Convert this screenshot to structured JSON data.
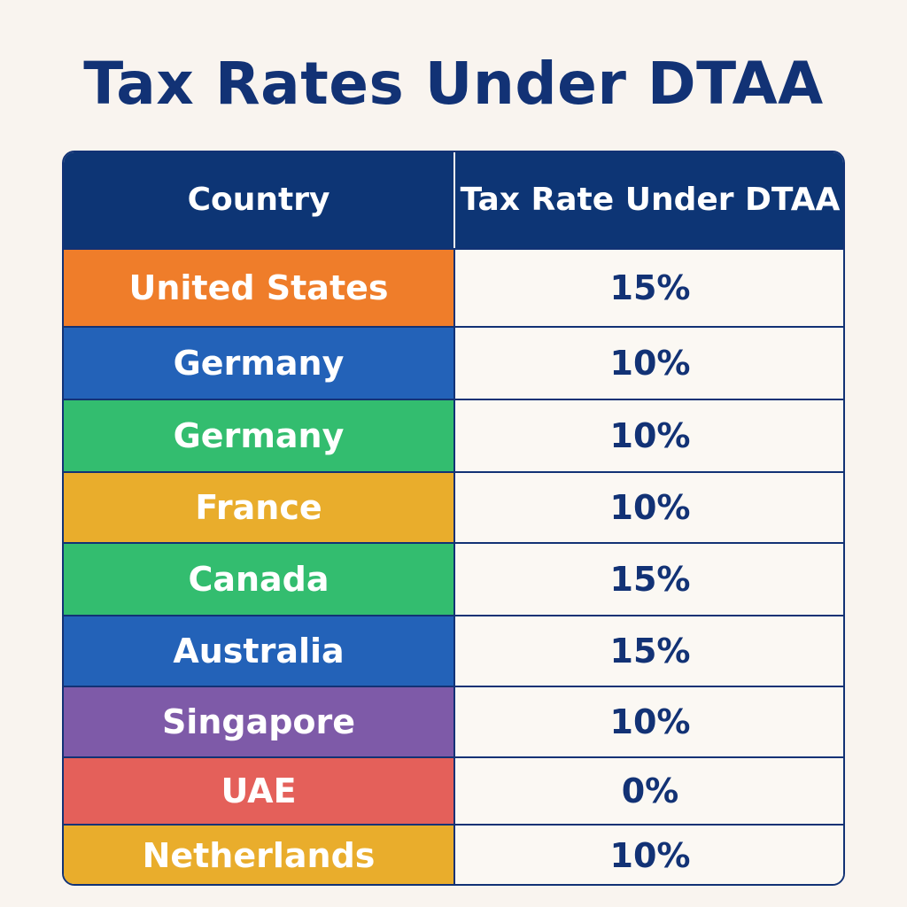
{
  "title": "Tax Rates Under DTAA",
  "table": {
    "headers": {
      "country": "Country",
      "rate": "Tax Rate Under DTAA"
    },
    "rows": [
      {
        "country": "United States",
        "rate": "15%",
        "color": "#ef7d2a"
      },
      {
        "country": "Germany",
        "rate": "10%",
        "color": "#2362b8"
      },
      {
        "country": "Germany",
        "rate": "10%",
        "color": "#33bd6f"
      },
      {
        "country": "France",
        "rate": "10%",
        "color": "#e9ad2c"
      },
      {
        "country": "Canada",
        "rate": "15%",
        "color": "#33bd6f"
      },
      {
        "country": "Australia",
        "rate": "15%",
        "color": "#2362b8"
      },
      {
        "country": "Singapore",
        "rate": "10%",
        "color": "#7e5aa8"
      },
      {
        "country": "UAE",
        "rate": "0%",
        "color": "#e4605a"
      },
      {
        "country": "Netherlands",
        "rate": "10%",
        "color": "#e9ad2c"
      }
    ]
  }
}
